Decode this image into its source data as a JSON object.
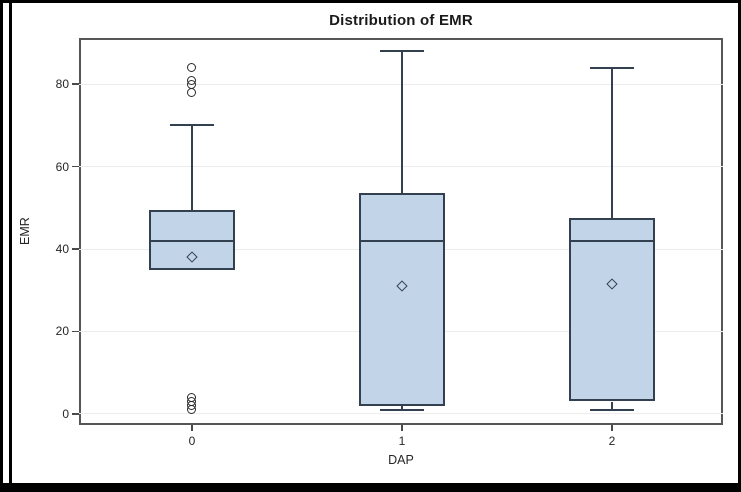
{
  "chart_data": {
    "type": "boxplot",
    "title": "Distribution of EMR",
    "xlabel": "DAP",
    "ylabel": "EMR",
    "categories": [
      "0",
      "1",
      "2"
    ],
    "yticks": [
      0,
      20,
      40,
      60,
      80
    ],
    "ylim": [
      -2.7,
      91.2
    ],
    "grid": true,
    "legend": "none",
    "groups": [
      {
        "category": "0",
        "q1": 35,
        "median": 42,
        "q3": 49.5,
        "whisker_low": 35,
        "whisker_high": 70,
        "mean": 38,
        "outliers": [
          1,
          2,
          3,
          4,
          78,
          80,
          81,
          84
        ]
      },
      {
        "category": "1",
        "q1": 2,
        "median": 42,
        "q3": 53.5,
        "whisker_low": 1,
        "whisker_high": 88,
        "mean": 31,
        "outliers": []
      },
      {
        "category": "2",
        "q1": 3,
        "median": 42,
        "q3": 47.5,
        "whisker_low": 1,
        "whisker_high": 84,
        "mean": 31.5,
        "outliers": []
      }
    ],
    "style": {
      "box_fill": "#c1d4e8",
      "line_color": "#33404f",
      "frame_color": "#565656",
      "grid_color": "#ececec",
      "tick_color": "#4a4a4a",
      "text_color": "#262626",
      "outer_border": "#000000",
      "background": "#ffffff"
    }
  }
}
